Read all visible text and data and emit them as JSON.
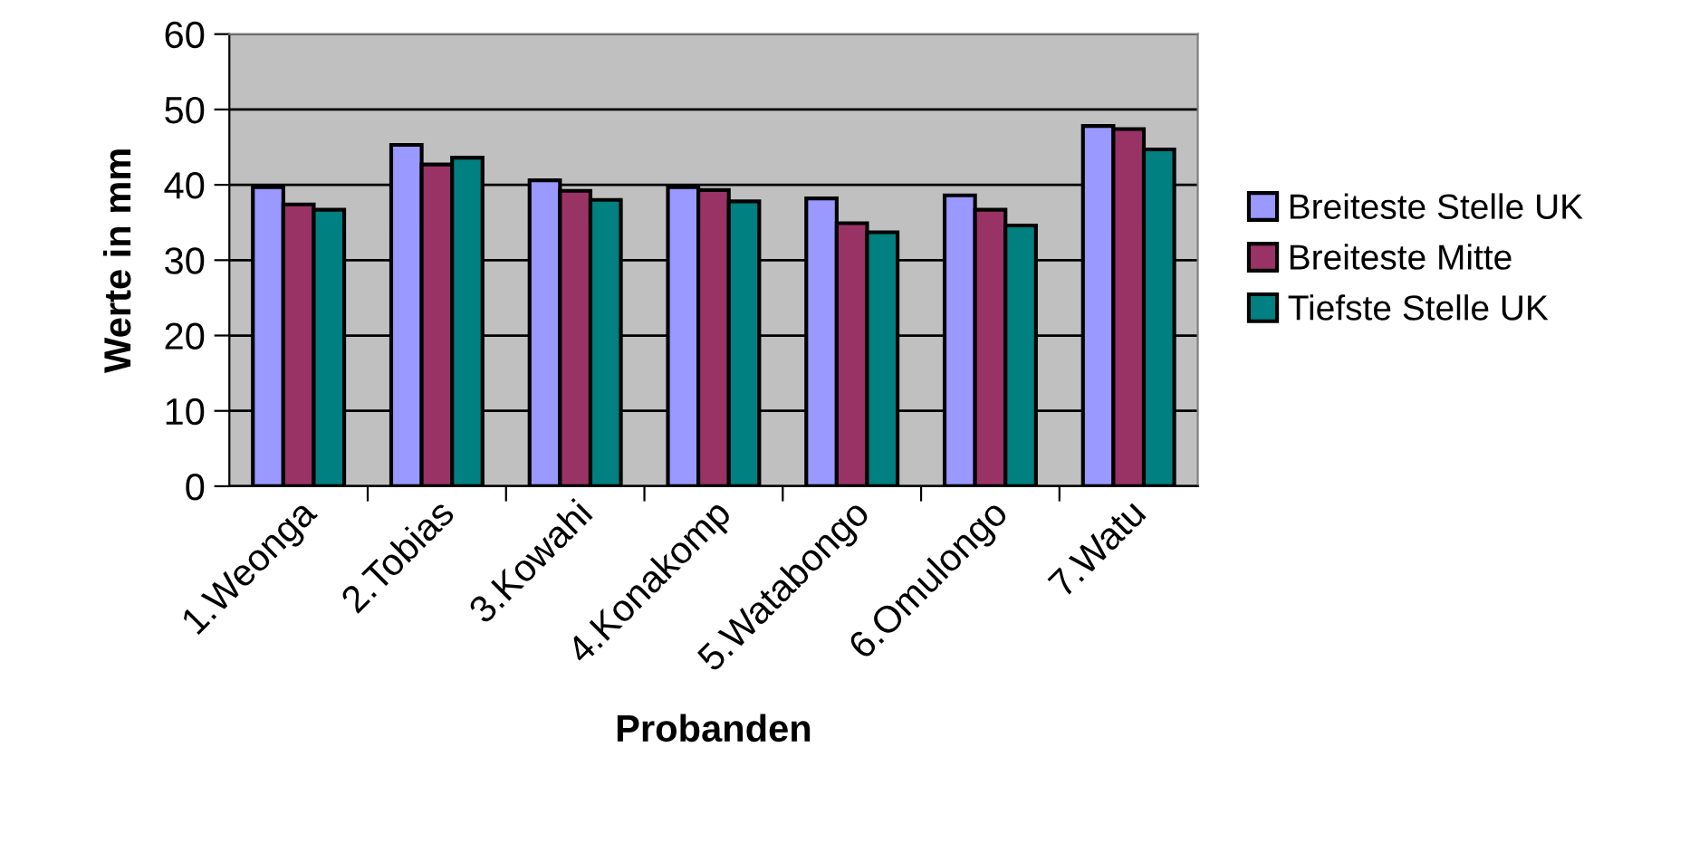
{
  "chart_data": {
    "type": "bar",
    "xlabel": "Probanden",
    "ylabel": "Werte in mm",
    "categories": [
      "1.Weonga",
      "2.Tobias",
      "3.Kowahi",
      "4.Konakomp",
      "5.Watabongo",
      "6.Omulongo",
      "7.Watu"
    ],
    "series": [
      {
        "name": "Breiteste Stelle UK",
        "color": "#9999ff",
        "values": [
          39.7,
          45.3,
          40.6,
          39.7,
          38.2,
          38.6,
          47.8
        ]
      },
      {
        "name": "Breiteste Mitte",
        "color": "#993366",
        "values": [
          37.4,
          42.7,
          39.2,
          39.3,
          34.9,
          36.7,
          47.4
        ]
      },
      {
        "name": "Tiefste Stelle UK",
        "color": "#008080",
        "values": [
          36.7,
          43.6,
          38.0,
          37.8,
          33.7,
          34.6,
          44.7
        ]
      }
    ],
    "ylim": [
      0,
      60
    ],
    "yticks": [
      0,
      10,
      20,
      30,
      40,
      50,
      60
    ],
    "grid": "y",
    "legend": "right"
  }
}
